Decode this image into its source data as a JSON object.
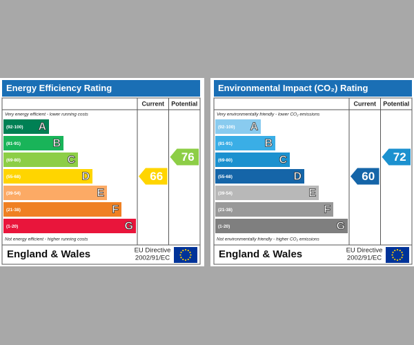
{
  "panels": [
    {
      "title": "Energy Efficiency Rating",
      "columns": [
        "Current",
        "Potential"
      ],
      "top_note": "Very energy efficient - lower running costs",
      "bands": [
        {
          "range": "(92-100)",
          "letter": "A",
          "color": "#008054"
        },
        {
          "range": "(81-91)",
          "letter": "B",
          "color": "#19b459"
        },
        {
          "range": "(69-80)",
          "letter": "C",
          "color": "#8dce46"
        },
        {
          "range": "(55-68)",
          "letter": "D",
          "color": "#ffd500"
        },
        {
          "range": "(39-54)",
          "letter": "E",
          "color": "#fcaa65"
        },
        {
          "range": "(21-38)",
          "letter": "F",
          "color": "#ef8023"
        },
        {
          "range": "(1-20)",
          "letter": "G",
          "color": "#e9153b"
        }
      ],
      "bottom_note": "Not energy efficient - higher running costs",
      "current": 66,
      "potential": 76,
      "region": "England & Wales",
      "directive": [
        "EU Directive",
        "2002/91/EC"
      ]
    },
    {
      "title": "Environmental Impact (CO₂) Rating",
      "columns": [
        "Current",
        "Potential"
      ],
      "top_note": "Very environmentally friendly - lower CO₂ emissions",
      "bands": [
        {
          "range": "(92-100)",
          "letter": "A",
          "color": "#89cbef"
        },
        {
          "range": "(81-91)",
          "letter": "B",
          "color": "#3aaee6"
        },
        {
          "range": "(69-80)",
          "letter": "C",
          "color": "#1c91cf"
        },
        {
          "range": "(55-68)",
          "letter": "D",
          "color": "#1565a8"
        },
        {
          "range": "(39-54)",
          "letter": "E",
          "color": "#b8b8b8"
        },
        {
          "range": "(21-38)",
          "letter": "F",
          "color": "#999999"
        },
        {
          "range": "(1-20)",
          "letter": "G",
          "color": "#7f7f7f"
        }
      ],
      "bottom_note": "Not environmentally friendly - higher CO₂ emissions",
      "current": 60,
      "potential": 72,
      "region": "England & Wales",
      "directive": [
        "EU Directive",
        "2002/91/EC"
      ]
    }
  ]
}
